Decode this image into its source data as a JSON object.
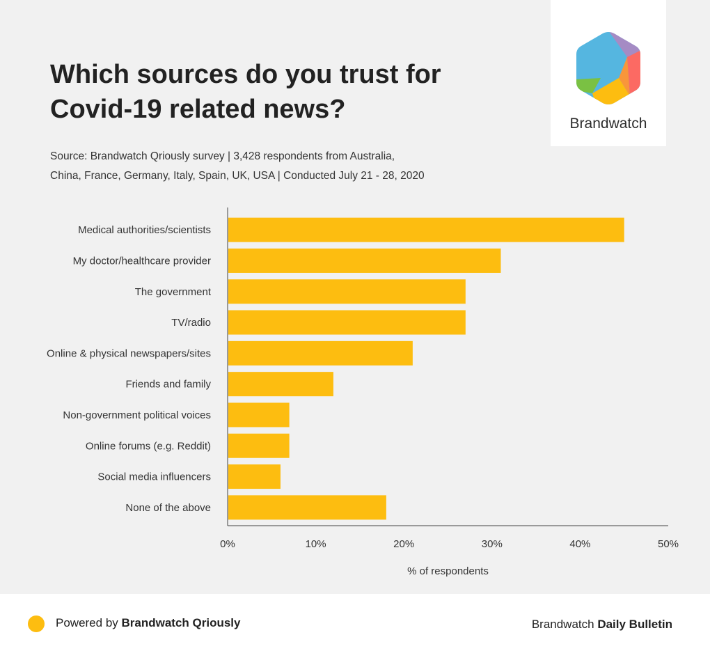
{
  "header": {
    "title_line1": "Which sources do you trust for",
    "title_line2": "Covid-19 related news?",
    "subtitle_line1": "Source: Brandwatch Qriously survey | 3,428 respondents from Australia,",
    "subtitle_line2": "China, France, Germany, Italy, Spain, UK, USA | Conducted July 21 - 28, 2020"
  },
  "logo": {
    "wordmark": "Brandwatch"
  },
  "chart_data": {
    "type": "bar",
    "orientation": "horizontal",
    "categories": [
      "Medical authorities/scientists",
      "My doctor/healthcare provider",
      "The government",
      "TV/radio",
      "Online & physical newspapers/sites",
      "Friends and family",
      "Non-government political voices",
      "Online forums (e.g. Reddit)",
      "Social media influencers",
      "None of the above"
    ],
    "values": [
      45,
      31,
      27,
      27,
      21,
      12,
      7,
      7,
      6,
      18
    ],
    "xlabel": "% of respondents",
    "xlim": [
      0,
      50
    ],
    "xticks": [
      "0%",
      "10%",
      "20%",
      "30%",
      "40%",
      "50%"
    ],
    "bar_color": "#fdbd10",
    "grid": false
  },
  "footer": {
    "powered_prefix": "Powered by ",
    "powered_brand": "Brandwatch Qriously",
    "right_prefix": "Brandwatch ",
    "right_brand": "Daily Bulletin",
    "dot_color": "#fdbd10"
  }
}
